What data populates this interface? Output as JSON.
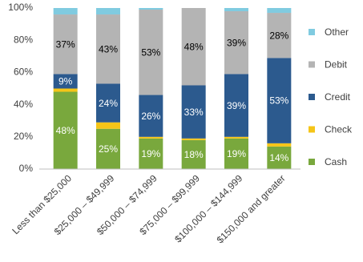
{
  "chart_data": {
    "type": "stacked_bar",
    "categories": [
      "Less than $25,000",
      "$25,000 – $49,999",
      "$50,000 – $74,999",
      "$75,000 – $99,999",
      "$100,000 – $144,999",
      "$150,000 and greater"
    ],
    "series": [
      {
        "name": "Cash",
        "color": "#79a83d",
        "values": [
          48,
          25,
          19,
          18,
          19,
          14
        ],
        "value_labels": [
          "48%",
          "25%",
          "19%",
          "18%",
          "19%",
          "14%"
        ]
      },
      {
        "name": "Check",
        "color": "#f5c518",
        "values": [
          2,
          4,
          1,
          1,
          1,
          2
        ]
      },
      {
        "name": "Credit",
        "color": "#2c5a8e",
        "values": [
          9,
          24,
          26,
          33,
          39,
          53
        ],
        "value_labels": [
          "9%",
          "24%",
          "26%",
          "33%",
          "39%",
          "53%"
        ]
      },
      {
        "name": "Debit",
        "color": "#b4b4b4",
        "values": [
          37,
          43,
          53,
          48,
          39,
          28
        ],
        "value_labels": [
          "37%",
          "43%",
          "53%",
          "48%",
          "39%",
          "28%"
        ]
      },
      {
        "name": "Other",
        "color": "#80cbe0",
        "values": [
          4,
          4,
          1,
          0,
          2,
          3
        ]
      }
    ],
    "ylim": [
      0,
      100
    ],
    "yticks": [
      {
        "value": 0,
        "label": "0%"
      },
      {
        "value": 20,
        "label": "20%"
      },
      {
        "value": 40,
        "label": "40%"
      },
      {
        "value": 60,
        "label": "60%"
      },
      {
        "value": 80,
        "label": "80%"
      },
      {
        "value": 100,
        "label": "100%"
      }
    ],
    "legend": "right"
  }
}
